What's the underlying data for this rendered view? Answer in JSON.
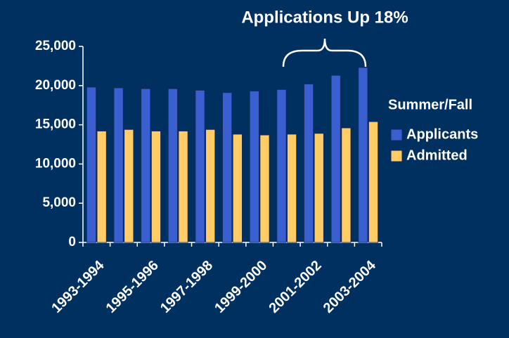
{
  "chart_data": {
    "type": "bar",
    "annotation": "Applications Up 18%",
    "legend_title": "Summer/Fall",
    "categories": [
      "1993-1994",
      null,
      "1995-1996",
      null,
      "1997-1998",
      null,
      "1999-2000",
      null,
      "2001-2002",
      null,
      "2003-2004"
    ],
    "series": [
      {
        "name": "Applicants",
        "color": "#3a5fd0",
        "values": [
          19800,
          19700,
          19600,
          19600,
          19400,
          19100,
          19300,
          19500,
          20200,
          21300,
          22300
        ]
      },
      {
        "name": "Admitted",
        "color": "#ffcc66",
        "values": [
          14200,
          14400,
          14200,
          14200,
          14400,
          13800,
          13700,
          13800,
          13900,
          14600,
          15400
        ]
      }
    ],
    "ylim": [
      0,
      25000
    ],
    "yticks": [
      0,
      {
        "value": 5000,
        "label": "5,000"
      },
      {
        "value": 10000,
        "label": "10,000"
      },
      {
        "value": 15000,
        "label": "15,000"
      },
      {
        "value": 20000,
        "label": "20,000"
      },
      {
        "value": 25000,
        "label": "25,000"
      }
    ],
    "grid": false,
    "legend": "right"
  }
}
